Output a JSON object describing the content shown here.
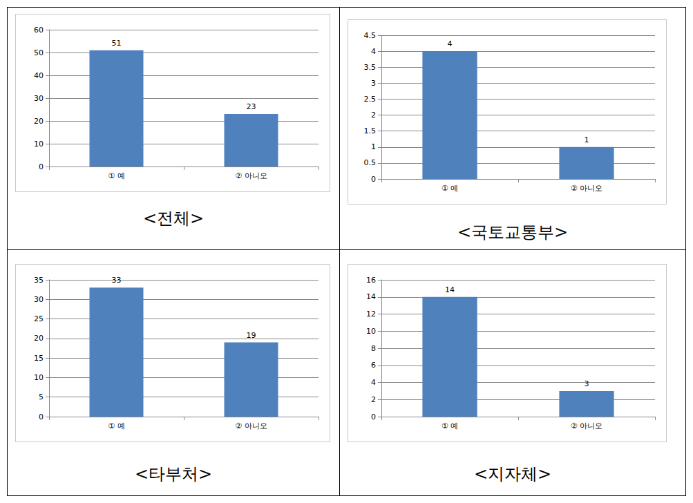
{
  "chart_data": [
    {
      "type": "bar",
      "title": "<전체>",
      "categories": [
        "① 예",
        "② 아니오"
      ],
      "values": [
        51,
        23
      ],
      "color": "#4f81bd",
      "ylim": [
        0,
        60
      ],
      "yticks": [
        0,
        10,
        20,
        30,
        40,
        50,
        60
      ],
      "grid": true,
      "data_labels": true
    },
    {
      "type": "bar",
      "title": "<국토교통부>",
      "categories": [
        "① 예",
        "② 아니오"
      ],
      "values": [
        4,
        1
      ],
      "color": "#4f81bd",
      "ylim": [
        0,
        4.5
      ],
      "yticks": [
        0,
        0.5,
        1,
        1.5,
        2,
        2.5,
        3,
        3.5,
        4,
        4.5
      ],
      "grid": true,
      "data_labels": true
    },
    {
      "type": "bar",
      "title": "<타부처>",
      "categories": [
        "① 예",
        "② 아니오"
      ],
      "values": [
        33,
        19
      ],
      "color": "#4f81bd",
      "ylim": [
        0,
        35
      ],
      "yticks": [
        0,
        5,
        10,
        15,
        20,
        25,
        30,
        35
      ],
      "grid": true,
      "data_labels": true
    },
    {
      "type": "bar",
      "title": "<지자체>",
      "categories": [
        "① 예",
        "② 아니오"
      ],
      "values": [
        14,
        3
      ],
      "color": "#4f81bd",
      "ylim": [
        0,
        16
      ],
      "yticks": [
        0,
        2,
        4,
        6,
        8,
        10,
        12,
        14,
        16
      ],
      "grid": true,
      "data_labels": true
    }
  ]
}
